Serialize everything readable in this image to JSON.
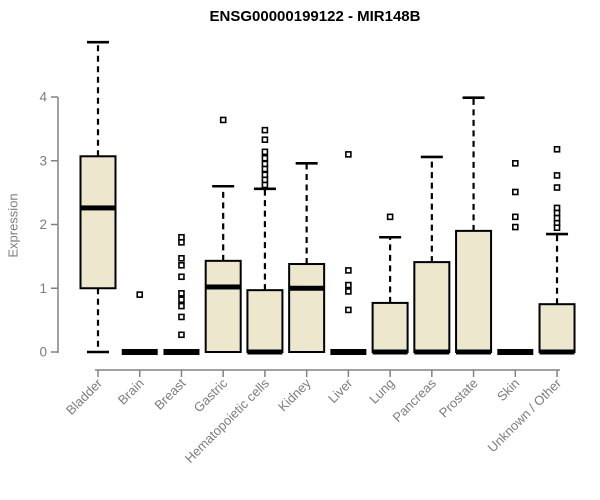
{
  "chart_data": {
    "type": "boxplot",
    "title": "ENSG00000199122 - MIR148B",
    "ylabel": "Expression",
    "xlabel": "",
    "ylim": [
      0,
      4.9
    ],
    "yticks": [
      0,
      1,
      2,
      3,
      4
    ],
    "grid": false,
    "legend": null,
    "categories": [
      "Bladder",
      "Brain",
      "Breast",
      "Gastric",
      "Hematopoietic cells",
      "Kidney",
      "Liver",
      "Lung",
      "Pancreas",
      "Prostate",
      "Skin",
      "Unknown / Other"
    ],
    "boxes": [
      {
        "category": "Bladder",
        "min": 0,
        "q1": 1.0,
        "median": 2.26,
        "q3": 3.07,
        "max": 4.86,
        "outliers": []
      },
      {
        "category": "Brain",
        "min": 0,
        "q1": 0,
        "median": 0,
        "q3": 0,
        "max": 0,
        "outliers": [
          0.9
        ]
      },
      {
        "category": "Breast",
        "min": 0,
        "q1": 0,
        "median": 0,
        "q3": 0,
        "max": 0,
        "outliers": [
          1.8,
          1.72,
          1.47,
          1.36,
          1.18,
          0.92,
          0.82,
          0.72,
          0.55,
          0.27
        ]
      },
      {
        "category": "Gastric",
        "min": 0,
        "q1": 0,
        "median": 1.02,
        "q3": 1.43,
        "max": 2.6,
        "outliers": [
          3.64
        ]
      },
      {
        "category": "Hematopoietic cells",
        "min": 0,
        "q1": 0,
        "median": 0,
        "q3": 0.97,
        "max": 2.56,
        "outliers": [
          3.48,
          3.33,
          3.14,
          3.04,
          2.95,
          2.87,
          2.78,
          2.7,
          2.62
        ]
      },
      {
        "category": "Kidney",
        "min": 0,
        "q1": 0,
        "median": 1.0,
        "q3": 1.38,
        "max": 2.96,
        "outliers": []
      },
      {
        "category": "Liver",
        "min": 0,
        "q1": 0,
        "median": 0,
        "q3": 0,
        "max": 0,
        "outliers": [
          3.1,
          1.28,
          1.05,
          0.95,
          0.66
        ]
      },
      {
        "category": "Lung",
        "min": 0,
        "q1": 0,
        "median": 0,
        "q3": 0.77,
        "max": 1.8,
        "outliers": [
          2.12
        ]
      },
      {
        "category": "Pancreas",
        "min": 0,
        "q1": 0,
        "median": 0,
        "q3": 1.41,
        "max": 3.06,
        "outliers": []
      },
      {
        "category": "Prostate",
        "min": 0,
        "q1": 0,
        "median": 0,
        "q3": 1.9,
        "max": 3.99,
        "outliers": []
      },
      {
        "category": "Skin",
        "min": 0,
        "q1": 0,
        "median": 0,
        "q3": 0,
        "max": 0,
        "outliers": [
          2.96,
          2.51,
          2.12,
          1.96
        ]
      },
      {
        "category": "Unknown / Other",
        "min": 0,
        "q1": 0,
        "median": 0,
        "q3": 0.75,
        "max": 1.85,
        "outliers": [
          3.18,
          2.77,
          2.58,
          2.26,
          2.18,
          2.1,
          2.02,
          1.95
        ]
      }
    ],
    "colors": {
      "box_fill": "#EDE8CD",
      "box_border": "#000000",
      "median": "#000000",
      "whisker": "#000000",
      "outlier_fill": "#ffffff",
      "outlier_border": "#000000",
      "axis": "#828282",
      "tick_label": "#7d7d7d",
      "title": "#000000",
      "background": "#ffffff"
    }
  }
}
